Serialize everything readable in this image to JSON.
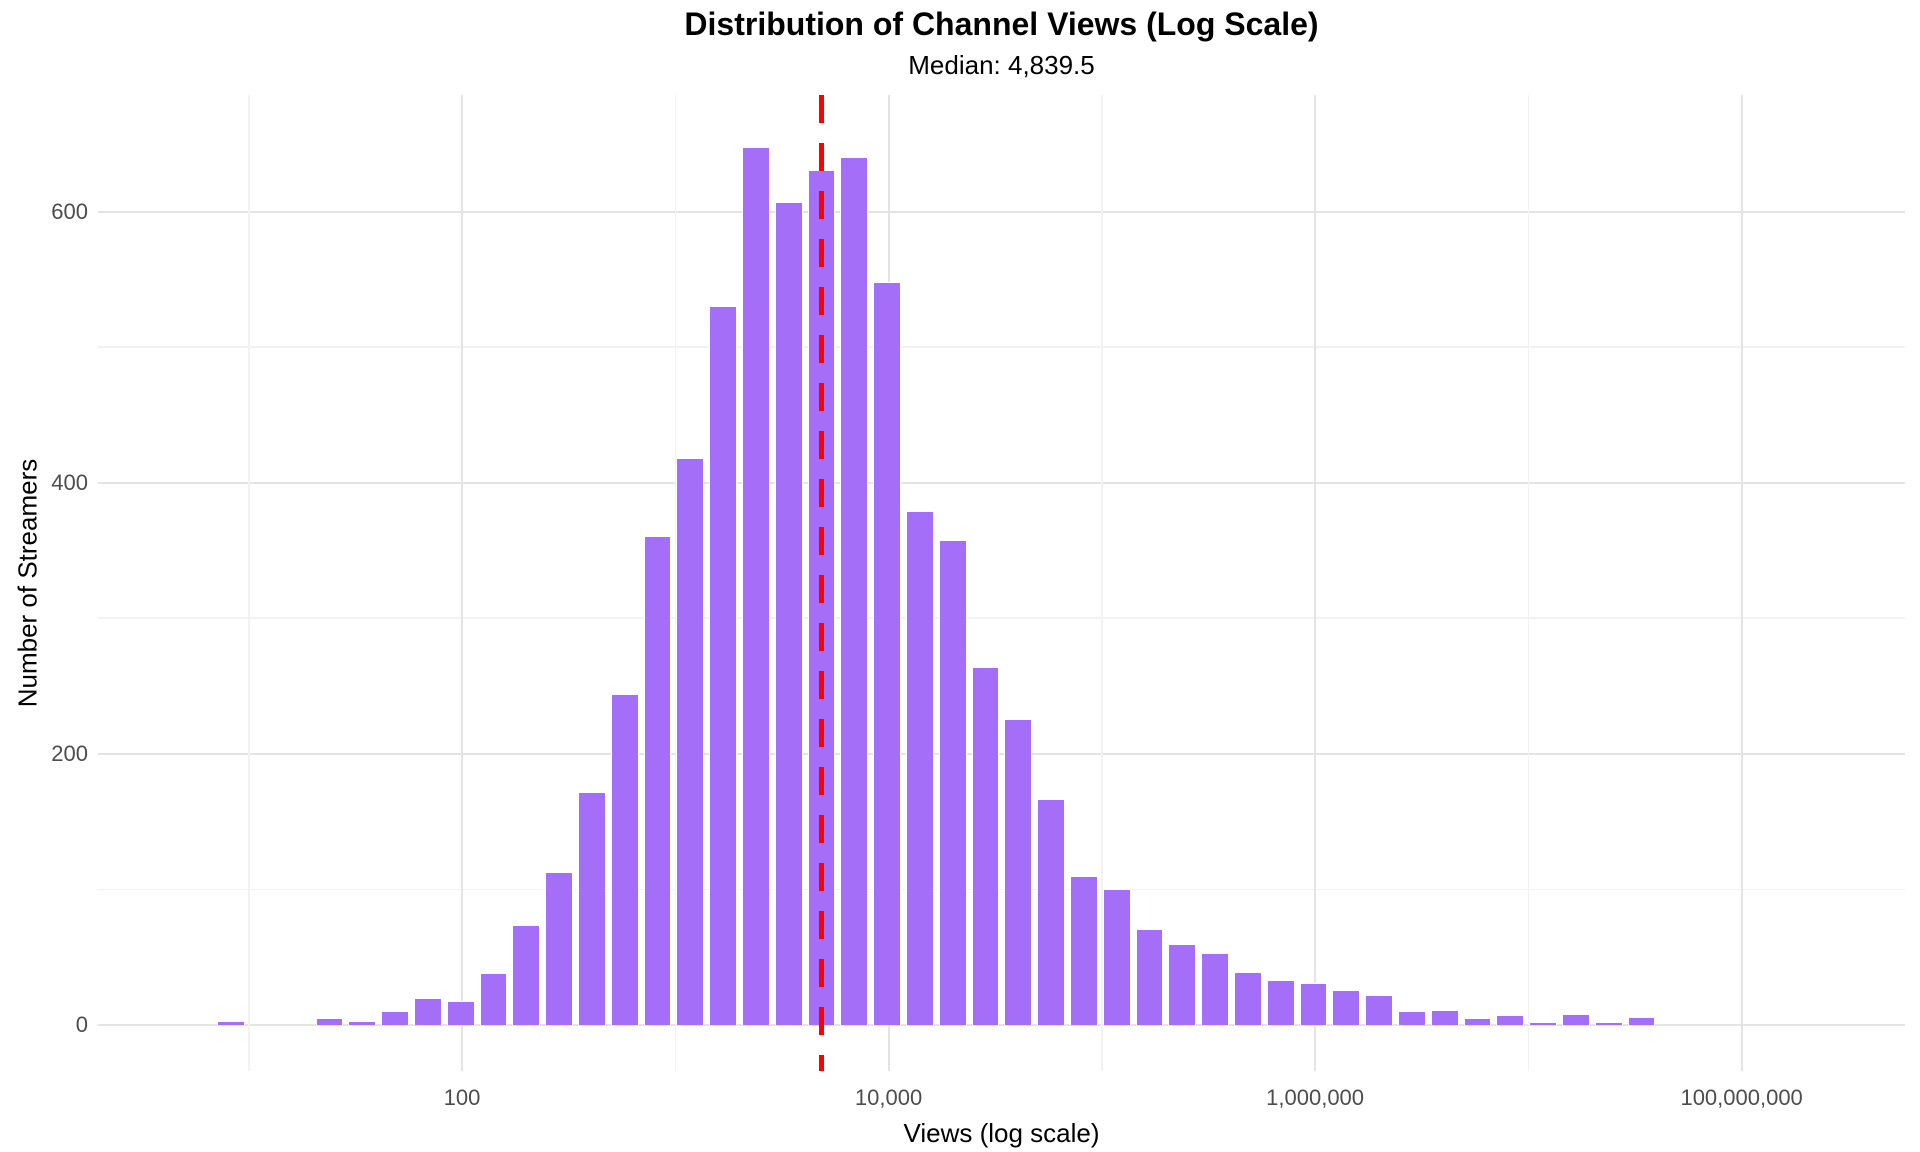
{
  "chart_data": {
    "type": "bar",
    "subtype": "histogram-log-x",
    "title": "Distribution of Channel Views (Log Scale)",
    "subtitle": "Median: 4,839.5",
    "xlabel": "Views (log scale)",
    "ylabel": "Number of Streamers",
    "median": {
      "value": 4839.5,
      "log10": 3.6848,
      "line_style": "dashed",
      "line_color": "#ff0000"
    },
    "x_domain_log10": [
      0.293,
      8.766
    ],
    "y_domain": [
      -34,
      686
    ],
    "binwidth_log10": 0.1538,
    "bins": {
      "log10_centers": [
        0.917,
        1.0708,
        1.2246,
        1.3784,
        1.5322,
        1.686,
        1.8398,
        1.9936,
        2.1474,
        2.3012,
        2.455,
        2.6088,
        2.7626,
        2.9164,
        3.0702,
        3.224,
        3.3778,
        3.5316,
        3.6854,
        3.8392,
        3.993,
        4.1468,
        4.3006,
        4.4544,
        4.6082,
        4.762,
        4.9158,
        5.0696,
        5.2234,
        5.3772,
        5.531,
        5.6848,
        5.8386,
        5.9924,
        6.1462,
        6.3,
        6.4538,
        6.6076,
        6.7614,
        6.9152,
        7.069,
        7.2228,
        7.3766,
        7.5304
      ],
      "approx_views_centers": [
        8,
        12,
        17,
        24,
        34,
        49,
        69,
        99,
        140,
        200,
        285,
        406,
        579,
        825,
        1180,
        1680,
        2390,
        3400,
        4850,
        6910,
        9840,
        14000,
        20000,
        28500,
        40600,
        57800,
        82400,
        117000,
        167000,
        238000,
        340000,
        484000,
        690000,
        983000,
        1400000,
        2000000,
        2840000,
        4050000,
        5770000,
        8230000,
        11700000,
        16700000,
        23800000,
        33900000
      ],
      "counts": [
        3,
        0,
        0,
        5,
        3,
        10,
        20,
        18,
        38,
        74,
        113,
        172,
        244,
        361,
        418,
        530,
        648,
        607,
        631,
        640,
        548,
        379,
        358,
        264,
        226,
        167,
        110,
        100,
        71,
        60,
        53,
        39,
        33,
        31,
        26,
        22,
        10,
        11,
        5,
        7,
        2,
        8,
        2,
        6
      ]
    },
    "x_ticks_major": [
      {
        "label": "100",
        "log10": 2
      },
      {
        "label": "10,000",
        "log10": 4
      },
      {
        "label": "1,000,000",
        "log10": 6
      },
      {
        "label": "100,000,000",
        "log10": 8
      }
    ],
    "x_minor_log10": [
      1,
      3,
      5,
      7
    ],
    "y_ticks_major": [
      {
        "label": "0",
        "value": 0
      },
      {
        "label": "200",
        "value": 200
      },
      {
        "label": "400",
        "value": 400
      },
      {
        "label": "600",
        "value": 600
      }
    ],
    "y_minor_values": [
      100,
      300,
      500
    ],
    "legend": "none",
    "grid": "on",
    "colors": {
      "bar_fill": "#a46ef8",
      "bar_border": "#ffffff",
      "median_line": "#ff0000",
      "grid_major": "#e4e4e4",
      "grid_minor": "#f2f2f2",
      "tick_text": "#4d4d4d",
      "title_text": "#000000",
      "background": "#ffffff"
    }
  }
}
